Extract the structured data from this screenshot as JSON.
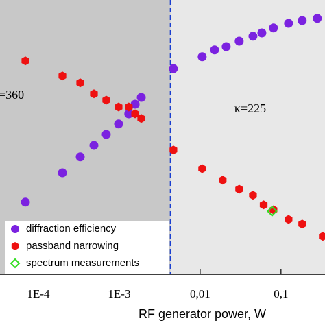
{
  "chart_data": {
    "type": "scatter",
    "xlabel": "RF generator power, W",
    "xscale": "log",
    "xlim": [
      3.35e-05,
      0.35
    ],
    "ylim": [
      0,
      1
    ],
    "xticks": [
      {
        "value": 0.0001,
        "label": "1E-4"
      },
      {
        "value": 0.001,
        "label": "1E-3"
      },
      {
        "value": 0.01,
        "label": "0,01"
      },
      {
        "value": 0.1,
        "label": "0,1"
      }
    ],
    "threshold_x": 0.0043,
    "annotations": [
      "=360",
      "κ=225"
    ],
    "legend": "lower left",
    "series": [
      {
        "name": "diffraction efficiency",
        "color": "#7b22e0",
        "marker": "circle",
        "x": [
          6.9e-05,
          0.000198,
          0.000329,
          0.000486,
          0.00069,
          0.00098,
          0.00131,
          0.00157,
          0.00187,
          0.00467,
          0.0106,
          0.0151,
          0.021,
          0.0304,
          0.045,
          0.058,
          0.0807,
          0.124,
          0.183,
          0.281
        ],
        "values": [
          0.263,
          0.37,
          0.428,
          0.47,
          0.51,
          0.548,
          0.585,
          0.62,
          0.645,
          0.75,
          0.793,
          0.818,
          0.83,
          0.85,
          0.868,
          0.88,
          0.898,
          0.915,
          0.925,
          0.933
        ]
      },
      {
        "name": "passband narrowing",
        "color": "#ee1111",
        "marker": "hexagon",
        "x": [
          6.9e-05,
          0.000198,
          0.000329,
          0.000486,
          0.00069,
          0.00098,
          0.00131,
          0.00157,
          0.00187,
          0.00467,
          0.0106,
          0.019,
          0.0304,
          0.045,
          0.061,
          0.0807,
          0.124,
          0.183,
          0.329
        ],
        "values": [
          0.778,
          0.723,
          0.698,
          0.658,
          0.635,
          0.61,
          0.61,
          0.585,
          0.568,
          0.453,
          0.385,
          0.343,
          0.31,
          0.288,
          0.253,
          0.235,
          0.2,
          0.183,
          0.138
        ]
      },
      {
        "name": "spectrum measurements",
        "color": "#33dd22",
        "marker": "diamond",
        "x": [
          0.0776
        ],
        "values": [
          0.23
        ]
      }
    ]
  }
}
